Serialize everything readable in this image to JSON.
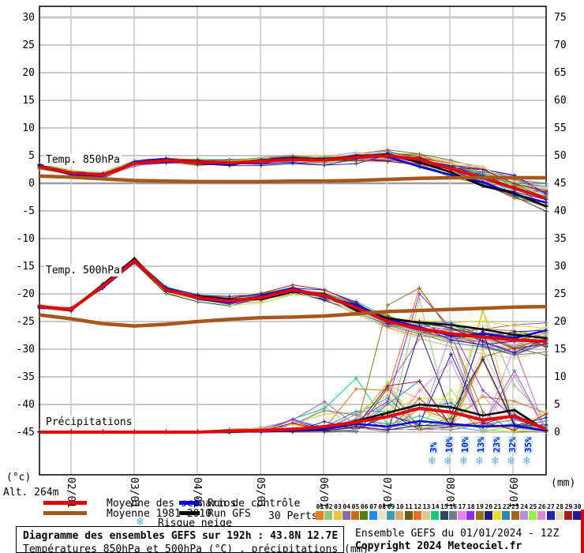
{
  "labels": {
    "alt": "Alt. 264m",
    "left_unit": "(°c)",
    "right_unit": "(mm)"
  },
  "legend": {
    "mean": "Moyenne des scénarios",
    "climatology": "Moyenne 1981-2010",
    "control": "Run de contrôle",
    "gfs": "Run GFS",
    "snow": "Risque neige",
    "perts": "30 Perts.",
    "pert_numbers": [
      "01",
      "02",
      "03",
      "04",
      "05",
      "06",
      "07",
      "08",
      "09",
      "10",
      "11",
      "12",
      "13",
      "14",
      "15",
      "16",
      "17",
      "18",
      "19",
      "20",
      "21",
      "22",
      "23",
      "24",
      "25",
      "26",
      "27",
      "28",
      "29",
      "30"
    ]
  },
  "footer": {
    "title": "Diagramme des ensembles GEFS sur 192h : 43.8N 12.7E",
    "subtitle": "Températures 850hPa et 500hPa (°C) , précipitations (mm)",
    "run_info": "Ensemble GEFS du 01/01/2024 - 12Z",
    "copyright": "Copyright 2024 Meteociel.fr"
  },
  "chart_data": {
    "type": "line",
    "title": "Diagramme des ensembles GEFS sur 192h : 43.8N 12.7E",
    "x_hours": [
      0,
      12,
      24,
      36,
      48,
      60,
      72,
      84,
      96,
      108,
      120,
      132,
      144,
      156,
      168,
      180,
      192
    ],
    "x_tick_labels": [
      "02/01",
      "03/01",
      "04/01",
      "05/01",
      "06/01",
      "07/01",
      "08/01",
      "09/01"
    ],
    "left_axis": {
      "label": "(°c)",
      "ticks": [
        30,
        25,
        20,
        15,
        10,
        5,
        0,
        -5,
        -10,
        -15,
        -20,
        -25,
        -30,
        -35,
        -40,
        -45
      ],
      "range": [
        30,
        -45
      ]
    },
    "right_axis": {
      "label": "(mm)",
      "ticks": [
        75,
        70,
        65,
        60,
        55,
        50,
        45,
        40,
        35,
        30,
        25,
        20,
        15,
        10,
        5,
        0
      ],
      "range": [
        75,
        0
      ]
    },
    "grid": true,
    "panels": {
      "temp850": {
        "label": "Temp. 850hPa",
        "mean": [
          3.0,
          1.9,
          1.5,
          3.6,
          4.1,
          3.8,
          3.7,
          4.0,
          4.3,
          4.2,
          4.7,
          5.0,
          4.3,
          2.6,
          1.0,
          -0.9,
          -2.7
        ],
        "control": [
          3.2,
          1.6,
          1.3,
          3.9,
          4.4,
          3.6,
          3.3,
          4.2,
          4.6,
          4.1,
          5.0,
          4.8,
          3.0,
          1.5,
          0.2,
          -2.0,
          -3.5
        ],
        "gfs": [
          3.1,
          1.8,
          1.6,
          3.7,
          4.2,
          4.0,
          3.5,
          3.9,
          4.5,
          4.4,
          4.9,
          5.2,
          3.8,
          2.0,
          -0.5,
          -1.8,
          -4.2
        ],
        "climatology": [
          1.3,
          1.1,
          0.8,
          0.5,
          0.4,
          0.3,
          0.3,
          0.3,
          0.4,
          0.4,
          0.5,
          0.7,
          0.9,
          1.0,
          1.0,
          1.0,
          1.0
        ],
        "ensemble_spread": [
          0.6,
          0.8,
          0.9,
          0.9,
          1.0,
          1.1,
          1.2,
          1.2,
          1.3,
          1.5,
          1.7,
          2.0,
          2.4,
          2.8,
          3.2,
          3.8,
          4.2
        ]
      },
      "temp500": {
        "label": "Temp. 500hPa",
        "mean": [
          -22.3,
          -22.8,
          -18.6,
          -14.0,
          -19.3,
          -20.7,
          -21.3,
          -20.7,
          -19.3,
          -20.3,
          -22.5,
          -25.0,
          -26.3,
          -27.2,
          -27.8,
          -28.3,
          -28.6
        ],
        "control": [
          -22.4,
          -22.6,
          -18.9,
          -14.2,
          -19.0,
          -20.9,
          -21.6,
          -20.4,
          -19.0,
          -20.6,
          -22.0,
          -24.6,
          -26.0,
          -27.6,
          -27.2,
          -28.0,
          -26.6
        ],
        "gfs": [
          -22.3,
          -22.9,
          -18.3,
          -13.6,
          -19.5,
          -20.5,
          -21.0,
          -21.0,
          -19.6,
          -20.0,
          -23.0,
          -24.4,
          -25.2,
          -25.6,
          -26.4,
          -27.4,
          -28.0
        ],
        "climatology": [
          -23.8,
          -24.5,
          -25.4,
          -25.8,
          -25.5,
          -25.0,
          -24.6,
          -24.3,
          -24.2,
          -24.0,
          -23.6,
          -23.2,
          -23.0,
          -22.8,
          -22.6,
          -22.4,
          -22.3
        ],
        "ensemble_spread": [
          0.4,
          0.6,
          0.8,
          0.9,
          1.0,
          1.1,
          1.3,
          1.3,
          1.4,
          1.7,
          2.2,
          2.8,
          3.2,
          3.6,
          4.0,
          4.4,
          4.6
        ]
      },
      "precip": {
        "label": "Précipitations",
        "mean": [
          0,
          0,
          0,
          0,
          0,
          0,
          0.2,
          0.3,
          0.5,
          1.0,
          1.8,
          2.8,
          4.3,
          3.6,
          2.2,
          2.9,
          0.5
        ],
        "control": [
          0,
          0,
          0,
          0,
          0,
          0,
          0,
          0.2,
          0.3,
          0.5,
          1.5,
          1.0,
          2.0,
          1.5,
          1.0,
          1.2,
          0.2
        ],
        "gfs": [
          0,
          0,
          0,
          0,
          0,
          0,
          0,
          0.3,
          0.5,
          0.8,
          2.0,
          3.5,
          5.0,
          4.5,
          3.0,
          4.0,
          0.3
        ],
        "ensemble_max": [
          0.2,
          0.2,
          0.2,
          0.3,
          0.3,
          0.4,
          0.6,
          1.0,
          2.5,
          6,
          12,
          26,
          28,
          22,
          24,
          16,
          4
        ]
      }
    },
    "snow_risk": {
      "legend_label": "Risque neige",
      "percentages": [
        "3%",
        "10%",
        "10%",
        "13%",
        "23%",
        "32%",
        "35%"
      ]
    },
    "colors": {
      "mean": "#e60000",
      "climatology": "#a9561b",
      "control": "#0000dd",
      "gfs": "#000000",
      "grid": "#c9c9c9",
      "zero_line": "#9e9e9e",
      "snow_pct_text": "#1515cc",
      "snow_pct_bg": "#c9f0fa",
      "snowflake": "#58b0e0"
    },
    "member_colors": [
      "#e87f1e",
      "#8fc878",
      "#e8c332",
      "#8a68ac",
      "#c36d16",
      "#5a7d16",
      "#1f8bee",
      "#e9e2c3",
      "#3d99b2",
      "#d9aa6b",
      "#6b5c16",
      "#ef6d1f",
      "#d9c98c",
      "#16c87d",
      "#2b4a5c",
      "#6b7d8a",
      "#ee7dee",
      "#8b2fe8",
      "#937316",
      "#231a7d",
      "#eedc1f",
      "#2b84ac",
      "#a3631f",
      "#ab93d9",
      "#9bee43",
      "#d98bd9",
      "#2323b2",
      "#e2dab2",
      "#a81c1c",
      "#1d1d93"
    ],
    "members_note": "30 perturbation members drawn as mean ± ensemble_spread (seeded noise)"
  }
}
